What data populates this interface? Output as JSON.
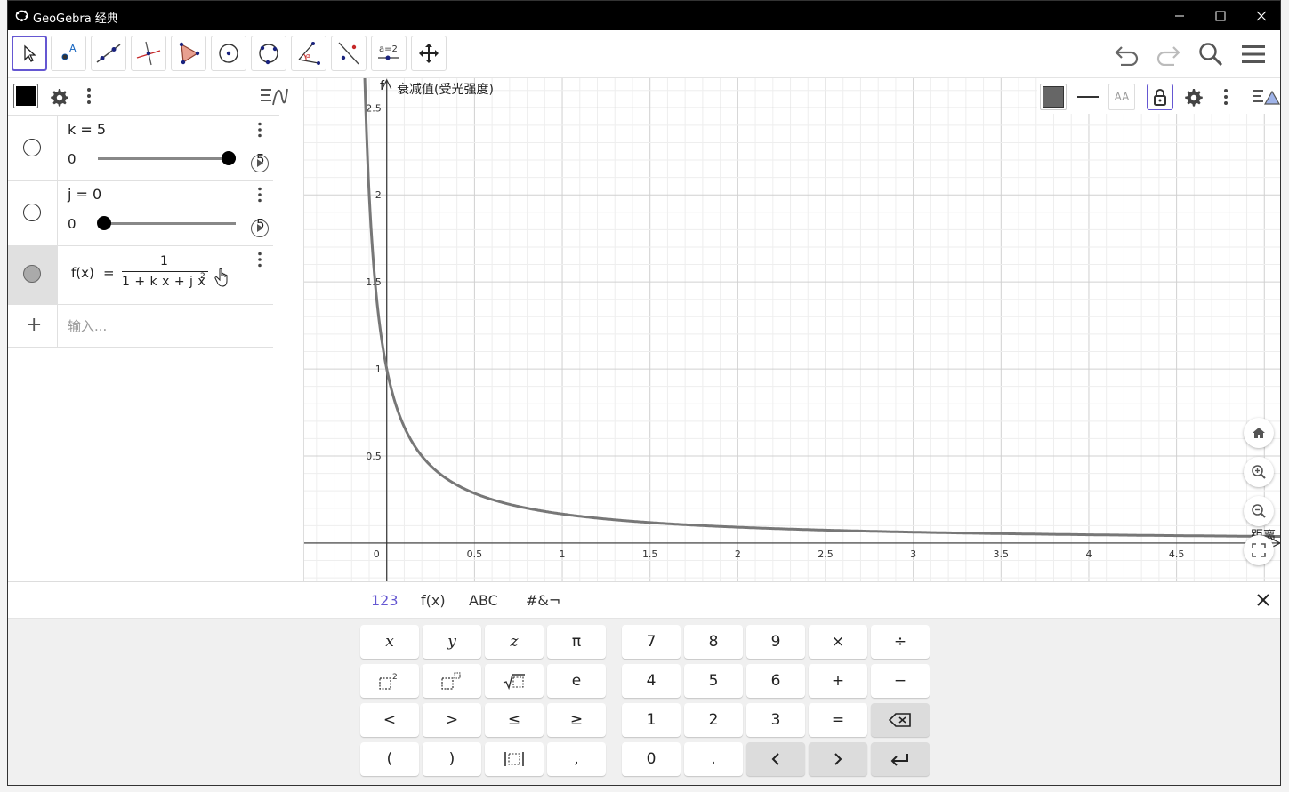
{
  "window": {
    "title": "GeoGebra 经典"
  },
  "toolbar": {
    "tools": [
      "move-tool",
      "point-tool",
      "line-tool",
      "perpendicular-line-tool",
      "polygon-tool",
      "circle-tool",
      "conic-tool",
      "angle-tool",
      "reflect-tool",
      "slider-tool",
      "move-graphics-tool"
    ],
    "slider_tool_label": "a=2"
  },
  "algebra": {
    "items": [
      {
        "label": "k = 5",
        "min": "0",
        "max": "5",
        "value_fraction": 1.0
      },
      {
        "label": "j = 0",
        "min": "0",
        "max": "5",
        "value_fraction": 0.0
      }
    ],
    "function": {
      "lhs": "f(x)",
      "eq": "=",
      "numerator": "1",
      "denominator": "1 + k x + j x",
      "exponent": "2"
    },
    "input_placeholder": "输入...",
    "add_symbol": "+"
  },
  "graphics": {
    "y_axis_name": "f",
    "y_axis_label": "衰减值(受光强度)",
    "x_axis_label": "距离",
    "origin_label": "0",
    "x_ticks": [
      "0.5",
      "1",
      "1.5",
      "2",
      "2.5",
      "3",
      "3.5",
      "4",
      "4.5"
    ],
    "y_ticks": [
      "0.5",
      "1",
      "1.5",
      "2",
      "2.5"
    ],
    "style_text_label": "AA",
    "curve_color": "#777777"
  },
  "chart_data": {
    "type": "line",
    "function": "f(x) = 1 / (1 + 5x)",
    "xlim": [
      -0.47,
      5.1
    ],
    "ylim": [
      -0.22,
      2.67
    ],
    "series": [
      {
        "name": "f",
        "x": [
          0,
          0.1,
          0.2,
          0.5,
          1,
          1.5,
          2,
          2.5,
          3,
          3.5,
          4,
          4.5,
          5
        ],
        "y": [
          1,
          0.667,
          0.5,
          0.286,
          0.167,
          0.118,
          0.091,
          0.074,
          0.063,
          0.054,
          0.048,
          0.043,
          0.038
        ]
      }
    ],
    "xlabel": "距离",
    "ylabel": "衰减值(受光强度)",
    "grid": true
  },
  "keyboard": {
    "tabs": [
      "123",
      "f(x)",
      "ABC",
      "#&¬"
    ],
    "left_keys": [
      "x",
      "y",
      "z",
      "π",
      "x²",
      "xⁿ",
      "√",
      "e",
      "<",
      ">",
      "≤",
      "≥",
      "(",
      ")",
      "|x|",
      ","
    ],
    "right_keys": [
      "7",
      "8",
      "9",
      "×",
      "÷",
      "4",
      "5",
      "6",
      "+",
      "−",
      "1",
      "2",
      "3",
      "=",
      "⌫",
      "0",
      ".",
      "<",
      ">",
      "↵"
    ]
  },
  "colors": {
    "accent": "#6557d2",
    "title_bar": "#000000",
    "grid": "#e0e0e0",
    "axis": "#333333"
  }
}
